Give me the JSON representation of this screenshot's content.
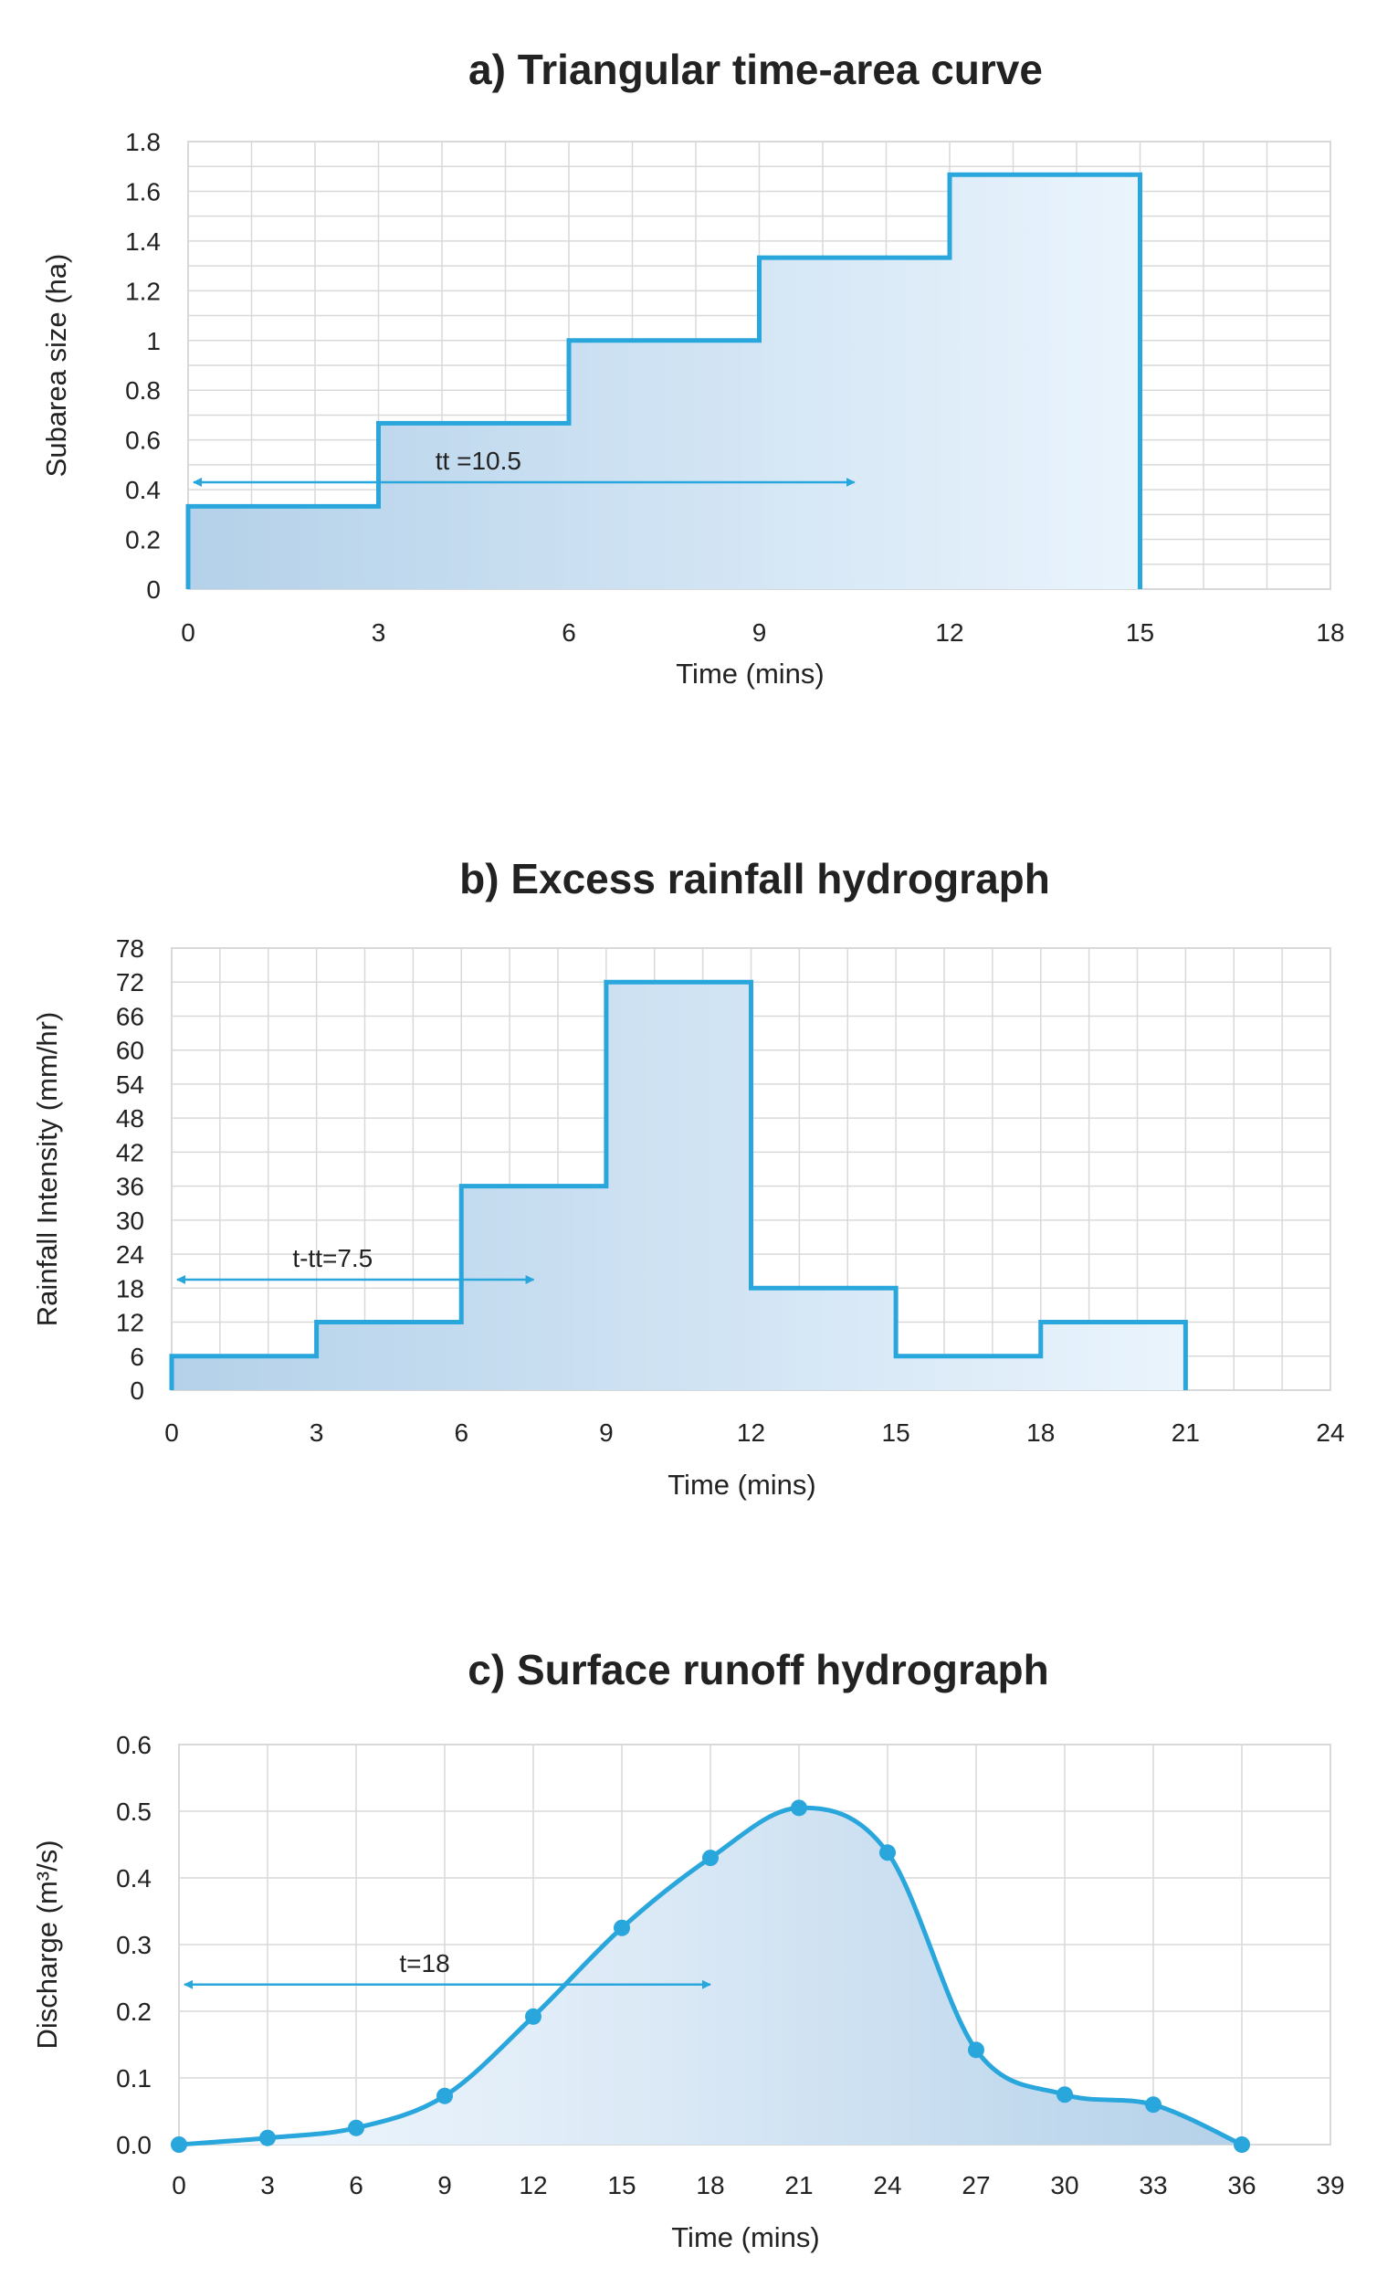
{
  "colors": {
    "line": "#29a6dc",
    "grid": "#d9d9d9",
    "fill_dark": "#b7d3ea",
    "fill_light": "#eef6fd"
  },
  "chart_data": [
    {
      "type": "area",
      "step": true,
      "title": "a) Triangular time-area curve",
      "xlabel": "Time (mins)",
      "ylabel": "Subarea size (ha)",
      "xlim": [
        0,
        18
      ],
      "ylim": [
        0,
        1.8
      ],
      "xticks": [
        "0",
        "3",
        "6",
        "9",
        "12",
        "15",
        "18"
      ],
      "yticks": [
        "0",
        "0.2",
        "0.4",
        "0.6",
        "0.8",
        "1",
        "1.2",
        "1.4",
        "1.6",
        "1.8"
      ],
      "x_minor_step": 1,
      "y_minor_step": 0.1,
      "steps": [
        {
          "x0": 0,
          "x1": 3,
          "y": 0.333
        },
        {
          "x0": 3,
          "x1": 6,
          "y": 0.667
        },
        {
          "x0": 6,
          "x1": 9,
          "y": 1.0
        },
        {
          "x0": 9,
          "x1": 12,
          "y": 1.333
        },
        {
          "x0": 12,
          "x1": 15,
          "y": 1.667
        }
      ],
      "annotation": {
        "text": "tt =10.5",
        "x0": 0,
        "x1": 10.5,
        "y": 0.43
      }
    },
    {
      "type": "area",
      "step": true,
      "title": "b) Excess rainfall hydrograph",
      "xlabel": "Time (mins)",
      "ylabel": "Rainfall Intensity (mm/hr)",
      "xlim": [
        0,
        24
      ],
      "ylim": [
        0,
        78
      ],
      "xticks": [
        "0",
        "3",
        "6",
        "9",
        "12",
        "15",
        "18",
        "21",
        "24"
      ],
      "yticks": [
        "0",
        "6",
        "12",
        "18",
        "24",
        "30",
        "36",
        "42",
        "48",
        "54",
        "60",
        "66",
        "72",
        "78"
      ],
      "x_minor_step": 1,
      "y_minor_step": 6,
      "steps": [
        {
          "x0": 0,
          "x1": 3,
          "y": 6
        },
        {
          "x0": 3,
          "x1": 6,
          "y": 12
        },
        {
          "x0": 6,
          "x1": 9,
          "y": 36
        },
        {
          "x0": 9,
          "x1": 12,
          "y": 72
        },
        {
          "x0": 12,
          "x1": 15,
          "y": 18
        },
        {
          "x0": 15,
          "x1": 18,
          "y": 6
        },
        {
          "x0": 18,
          "x1": 21,
          "y": 12
        }
      ],
      "annotation": {
        "text": "t-tt=7.5",
        "x0": 0,
        "x1": 7.5,
        "y": 19.5
      }
    },
    {
      "type": "line",
      "area_fill": true,
      "title": "c) Surface runoff hydrograph",
      "xlabel": "Time (mins)",
      "ylabel": "Discharge (m³/s)",
      "xlim": [
        0,
        39
      ],
      "ylim": [
        0,
        0.6
      ],
      "xticks": [
        "0",
        "3",
        "6",
        "9",
        "12",
        "15",
        "18",
        "21",
        "24",
        "27",
        "30",
        "33",
        "36",
        "39"
      ],
      "yticks": [
        "0.0",
        "0.1",
        "0.2",
        "0.3",
        "0.4",
        "0.5",
        "0.6"
      ],
      "x": [
        0,
        3,
        6,
        9,
        12,
        15,
        18,
        21,
        24,
        27,
        30,
        33,
        36
      ],
      "y": [
        0.0,
        0.01,
        0.025,
        0.073,
        0.192,
        0.325,
        0.43,
        0.505,
        0.438,
        0.142,
        0.075,
        0.06,
        0.0
      ],
      "annotation": {
        "text": "t=18",
        "x0": 0,
        "x1": 18,
        "y": 0.24
      }
    }
  ]
}
